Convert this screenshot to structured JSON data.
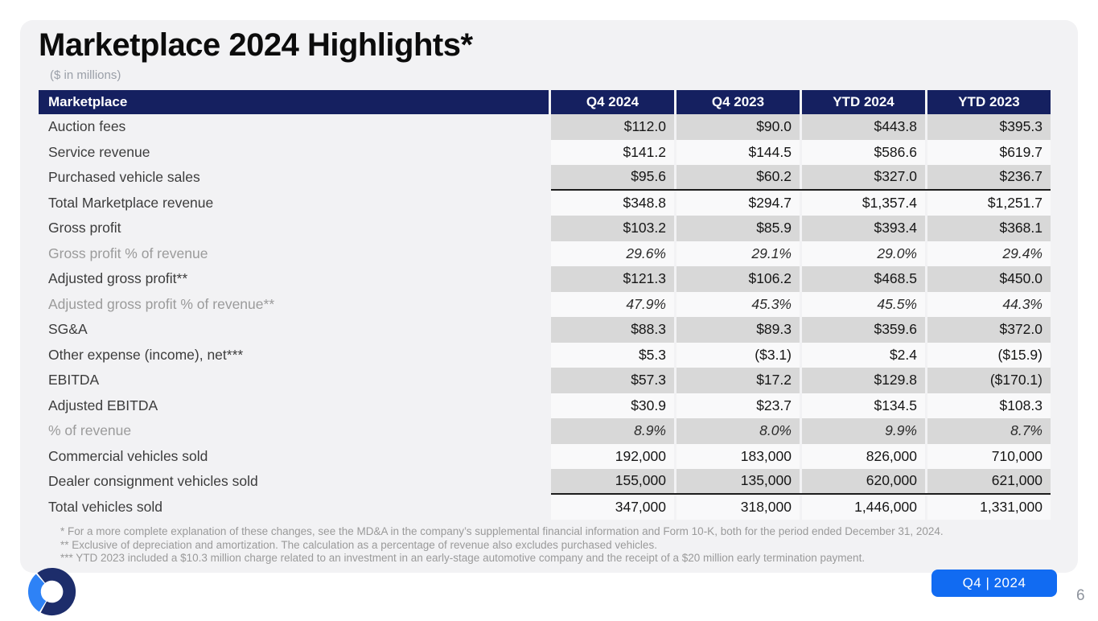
{
  "slide": {
    "title": "Marketplace 2024 Highlights*",
    "subtitle": "($ in millions)",
    "badge_label": "Q4 | 2024",
    "page_number": "6"
  },
  "colors": {
    "header_navy": "#152060",
    "stripe_gray": "#d8d8d8",
    "badge_blue": "#116bf2",
    "logo_navy": "#1d2d6b",
    "logo_blue": "#2e82f6",
    "card_background": "#f2f2f4"
  },
  "table": {
    "header": [
      "Marketplace",
      "Q4 2024",
      "Q4 2023",
      "YTD 2024",
      "YTD 2023"
    ],
    "rows": [
      {
        "label": "Auction fees",
        "values": [
          "$112.0",
          "$90.0",
          "$443.8",
          "$395.3"
        ],
        "shade": true,
        "percent": false,
        "rule_below": false
      },
      {
        "label": "Service revenue",
        "values": [
          "$141.2",
          "$144.5",
          "$586.6",
          "$619.7"
        ],
        "shade": false,
        "percent": false,
        "rule_below": false
      },
      {
        "label": "Purchased vehicle sales",
        "values": [
          "$95.6",
          "$60.2",
          "$327.0",
          "$236.7"
        ],
        "shade": true,
        "percent": false,
        "rule_below": true
      },
      {
        "label": "Total Marketplace revenue",
        "values": [
          "$348.8",
          "$294.7",
          "$1,357.4",
          "$1,251.7"
        ],
        "shade": false,
        "percent": false,
        "rule_below": false
      },
      {
        "label": "Gross profit",
        "values": [
          "$103.2",
          "$85.9",
          "$393.4",
          "$368.1"
        ],
        "shade": true,
        "percent": false,
        "rule_below": false
      },
      {
        "label": "Gross profit % of revenue",
        "values": [
          "29.6%",
          "29.1%",
          "29.0%",
          "29.4%"
        ],
        "shade": false,
        "percent": true,
        "rule_below": false
      },
      {
        "label": "Adjusted gross profit**",
        "values": [
          "$121.3",
          "$106.2",
          "$468.5",
          "$450.0"
        ],
        "shade": true,
        "percent": false,
        "rule_below": false
      },
      {
        "label": "Adjusted gross profit % of revenue**",
        "values": [
          "47.9%",
          "45.3%",
          "45.5%",
          "44.3%"
        ],
        "shade": false,
        "percent": true,
        "rule_below": false
      },
      {
        "label": "SG&A",
        "values": [
          "$88.3",
          "$89.3",
          "$359.6",
          "$372.0"
        ],
        "shade": true,
        "percent": false,
        "rule_below": false
      },
      {
        "label": "Other expense (income), net***",
        "values": [
          "$5.3",
          "($3.1)",
          "$2.4",
          "($15.9)"
        ],
        "shade": false,
        "percent": false,
        "rule_below": false
      },
      {
        "label": "EBITDA",
        "values": [
          "$57.3",
          "$17.2",
          "$129.8",
          "($170.1)"
        ],
        "shade": true,
        "percent": false,
        "rule_below": false
      },
      {
        "label": "Adjusted EBITDA",
        "values": [
          "$30.9",
          "$23.7",
          "$134.5",
          "$108.3"
        ],
        "shade": false,
        "percent": false,
        "rule_below": false
      },
      {
        "label": "% of revenue",
        "values": [
          "8.9%",
          "8.0%",
          "9.9%",
          "8.7%"
        ],
        "shade": true,
        "percent": true,
        "rule_below": false
      },
      {
        "label": "Commercial vehicles sold",
        "values": [
          "192,000",
          "183,000",
          "826,000",
          "710,000"
        ],
        "shade": false,
        "percent": false,
        "rule_below": false
      },
      {
        "label": "Dealer consignment vehicles sold",
        "values": [
          "155,000",
          "135,000",
          "620,000",
          "621,000"
        ],
        "shade": true,
        "percent": false,
        "rule_below": true
      },
      {
        "label": "Total vehicles sold",
        "values": [
          "347,000",
          "318,000",
          "1,446,000",
          "1,331,000"
        ],
        "shade": false,
        "percent": false,
        "rule_below": false
      }
    ]
  },
  "footnotes": [
    "* For a more complete explanation of these changes, see the MD&A in the company’s supplemental financial information and Form 10-K, both for the period ended December 31, 2024.",
    "** Exclusive of depreciation and amortization. The calculation as a percentage of revenue also excludes purchased vehicles.",
    "*** YTD 2023 included a $10.3 million charge related to an investment in an early-stage automotive company and the receipt of a $20 million early termination payment."
  ]
}
